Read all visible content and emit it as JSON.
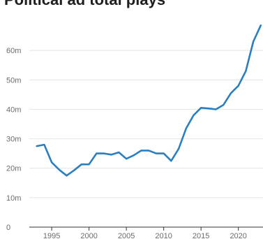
{
  "chart_data": {
    "type": "line",
    "title": "Political ad total plays",
    "xlabel": "",
    "ylabel": "",
    "x": [
      1993,
      1994,
      1995,
      1996,
      1997,
      1998,
      1999,
      2000,
      2001,
      2002,
      2003,
      2004,
      2005,
      2006,
      2007,
      2008,
      2009,
      2010,
      2011,
      2012,
      2013,
      2014,
      2015,
      2016,
      2017,
      2018,
      2019,
      2020,
      2021,
      2022,
      2023
    ],
    "series": [
      {
        "name": "",
        "values": [
          27.5,
          28,
          22,
          19.5,
          17.5,
          19.3,
          21.3,
          21.3,
          25,
          25,
          24.6,
          25.4,
          23.2,
          24.4,
          26,
          26,
          25,
          25,
          22.5,
          26.6,
          33.5,
          38,
          40.5,
          40.3,
          40,
          41.5,
          45.5,
          48,
          53,
          63,
          68.5
        ]
      }
    ],
    "xlim": [
      1992,
      2023.3
    ],
    "ylim": [
      0,
      70
    ],
    "x_ticks": [
      {
        "value": 1995,
        "label": "1995"
      },
      {
        "value": 2000,
        "label": "2000"
      },
      {
        "value": 2005,
        "label": "2005"
      },
      {
        "value": 2010,
        "label": "2010"
      },
      {
        "value": 2015,
        "label": "2015"
      },
      {
        "value": 2020,
        "label": "2020"
      }
    ],
    "y_ticks": [
      {
        "value": 0,
        "label": "0"
      },
      {
        "value": 10,
        "label": "10m"
      },
      {
        "value": 20,
        "label": "20m"
      },
      {
        "value": 30,
        "label": "30m"
      },
      {
        "value": 40,
        "label": "40m"
      },
      {
        "value": 50,
        "label": "50m"
      },
      {
        "value": 60,
        "label": "60m"
      }
    ],
    "grid": true,
    "legend": "none",
    "colors": {
      "line": "#2a7fc0",
      "grid": "#e4e4e4",
      "axis": "#333333",
      "text": "#6b6b6b"
    }
  }
}
